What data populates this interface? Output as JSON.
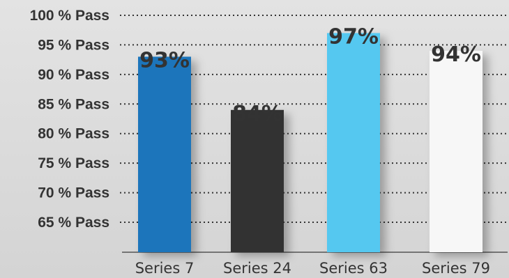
{
  "chart_data": {
    "type": "bar",
    "categories": [
      "Series 7",
      "Series 24",
      "Series 63",
      "Series 79"
    ],
    "values": [
      93,
      84,
      97,
      94
    ],
    "data_labels": [
      "93%",
      "84%",
      "97%",
      "94%"
    ],
    "colors": [
      "#1a74bb",
      "#333233",
      "#55c8f0",
      "#f7f7f7"
    ],
    "y_ticks": [
      {
        "value": 65,
        "label": "65 % Pass"
      },
      {
        "value": 70,
        "label": "70 % Pass"
      },
      {
        "value": 75,
        "label": "75 % Pass"
      },
      {
        "value": 80,
        "label": "80 % Pass"
      },
      {
        "value": 85,
        "label": "85 % Pass"
      },
      {
        "value": 90,
        "label": "90 % Pass"
      },
      {
        "value": 95,
        "label": "95 % Pass"
      },
      {
        "value": 100,
        "label": "100 % Pass"
      }
    ],
    "ylim": [
      60,
      100
    ],
    "grid": "dotted horizontal",
    "title": "",
    "xlabel": "",
    "ylabel": ""
  }
}
